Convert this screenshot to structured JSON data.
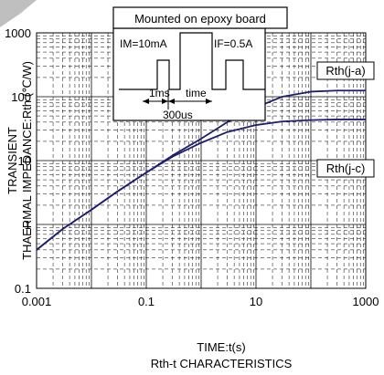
{
  "chart_data": {
    "type": "line",
    "x_scale": "log",
    "y_scale": "log",
    "xlim": [
      0.001,
      1000
    ],
    "ylim": [
      0.1,
      1000
    ],
    "x_ticks": [
      "0.001",
      "0.1",
      "10",
      "1000"
    ],
    "y_ticks": [
      "0.1",
      "1",
      "10",
      "100",
      "1000"
    ],
    "xlabel": "TIME:t(s)",
    "ylabel_line1": "TRANSIENT",
    "ylabel_line2": "THAERMAL IMPEDANCE:Rth (℃/W)",
    "caption": "Rth-t CHARACTERISTICS",
    "grid": true,
    "series": [
      {
        "name": "Rth(j-a)",
        "color": "#1c1f6e",
        "x": [
          0.001,
          0.003,
          0.01,
          0.03,
          0.1,
          0.3,
          1,
          3,
          10,
          30,
          100,
          300,
          1000
        ],
        "y": [
          0.4,
          0.85,
          1.7,
          3.3,
          6.5,
          12,
          22,
          40,
          68,
          100,
          120,
          125,
          125
        ]
      },
      {
        "name": "Rth(j-c)",
        "color": "#1c1f6e",
        "x": [
          0.001,
          0.003,
          0.01,
          0.03,
          0.1,
          0.3,
          1,
          3,
          10,
          30,
          100,
          300,
          1000
        ],
        "y": [
          0.4,
          0.85,
          1.7,
          3.3,
          6.5,
          11.5,
          19,
          28,
          36,
          41,
          43,
          44,
          44
        ]
      }
    ],
    "inset": {
      "title": "Mounted on epoxy board",
      "im_label": "IM=10mA",
      "if_label": "IF=0.5A",
      "t1_label": "1ms",
      "t2_label": "time",
      "t3_label": "300us"
    }
  }
}
